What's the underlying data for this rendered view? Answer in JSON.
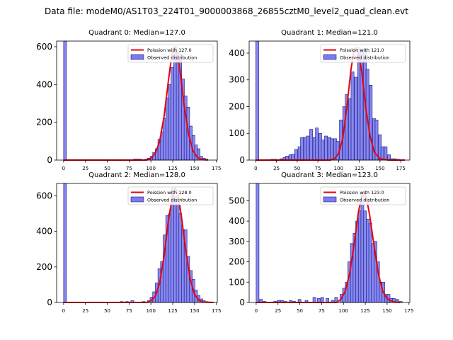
{
  "figure_title": "Data file: modeM0/AS1T03_224T01_9000003868_26855cztM0_level2_quad_clean.evt",
  "colors": {
    "hist_fill": "#7b7bf0",
    "hist_edge": "#1a1a80",
    "poisson": "#e8000b",
    "axes": "#000000"
  },
  "legend_labels": {
    "poisson": "Poission with {m}",
    "observed": "Observed distribution"
  },
  "chart_data": [
    {
      "type": "bar",
      "title": "Quadrant 0: Median=127.0",
      "legend_poisson": "Poission with 127.0",
      "legend_observed": "Observed distribution",
      "median": 127,
      "xlim": [
        -8,
        176
      ],
      "ylim": [
        0,
        630
      ],
      "xticks": [
        0,
        25,
        50,
        75,
        100,
        125,
        150,
        175
      ],
      "yticks": [
        0,
        200,
        400,
        600
      ],
      "bin_width": 3.3,
      "bins": [
        [
          0,
          640
        ],
        [
          80,
          5
        ],
        [
          83,
          5
        ],
        [
          86,
          5
        ],
        [
          93,
          5
        ],
        [
          96,
          10
        ],
        [
          99,
          20
        ],
        [
          102,
          40
        ],
        [
          105,
          60
        ],
        [
          108,
          110
        ],
        [
          111,
          150
        ],
        [
          114,
          220
        ],
        [
          117,
          330
        ],
        [
          120,
          400
        ],
        [
          123,
          490
        ],
        [
          126,
          600
        ],
        [
          129,
          570
        ],
        [
          132,
          560
        ],
        [
          135,
          430
        ],
        [
          138,
          340
        ],
        [
          141,
          280
        ],
        [
          144,
          180
        ],
        [
          147,
          130
        ],
        [
          150,
          80
        ],
        [
          153,
          60
        ],
        [
          156,
          20
        ],
        [
          159,
          10
        ],
        [
          162,
          5
        ]
      ],
      "poisson": [
        [
          0,
          0
        ],
        [
          95,
          0
        ],
        [
          100,
          10
        ],
        [
          105,
          35
        ],
        [
          110,
          100
        ],
        [
          115,
          230
        ],
        [
          120,
          420
        ],
        [
          124,
          560
        ],
        [
          127,
          600
        ],
        [
          130,
          570
        ],
        [
          134,
          450
        ],
        [
          138,
          290
        ],
        [
          143,
          140
        ],
        [
          148,
          50
        ],
        [
          153,
          15
        ],
        [
          158,
          3
        ],
        [
          165,
          0
        ]
      ]
    },
    {
      "type": "bar",
      "title": "Quadrant 1: Median=121.0",
      "legend_poisson": "Poission with 121.0",
      "legend_observed": "Observed distribution",
      "median": 121,
      "xlim": [
        -8,
        186
      ],
      "ylim": [
        0,
        445
      ],
      "xticks": [
        0,
        25,
        50,
        75,
        100,
        125,
        150,
        175
      ],
      "yticks": [
        0,
        100,
        200,
        300,
        400
      ],
      "bin_width": 3.6,
      "bins": [
        [
          0,
          460
        ],
        [
          18,
          3
        ],
        [
          22,
          3
        ],
        [
          29,
          5
        ],
        [
          33,
          10
        ],
        [
          36,
          15
        ],
        [
          40,
          20
        ],
        [
          43,
          22
        ],
        [
          47,
          40
        ],
        [
          51,
          50
        ],
        [
          54,
          85
        ],
        [
          58,
          85
        ],
        [
          61,
          90
        ],
        [
          65,
          115
        ],
        [
          69,
          85
        ],
        [
          72,
          120
        ],
        [
          76,
          100
        ],
        [
          79,
          75
        ],
        [
          83,
          90
        ],
        [
          87,
          85
        ],
        [
          90,
          80
        ],
        [
          94,
          80
        ],
        [
          97,
          70
        ],
        [
          101,
          150
        ],
        [
          105,
          200
        ],
        [
          108,
          245
        ],
        [
          112,
          230
        ],
        [
          115,
          330
        ],
        [
          119,
          310
        ],
        [
          123,
          420
        ],
        [
          126,
          410
        ],
        [
          130,
          415
        ],
        [
          133,
          340
        ],
        [
          137,
          280
        ],
        [
          141,
          155
        ],
        [
          144,
          150
        ],
        [
          148,
          95
        ],
        [
          151,
          50
        ],
        [
          155,
          50
        ],
        [
          159,
          20
        ],
        [
          162,
          5
        ],
        [
          166,
          5
        ],
        [
          170,
          3
        ]
      ],
      "poisson": [
        [
          0,
          0
        ],
        [
          90,
          0
        ],
        [
          95,
          5
        ],
        [
          100,
          25
        ],
        [
          105,
          80
        ],
        [
          110,
          200
        ],
        [
          115,
          340
        ],
        [
          119,
          415
        ],
        [
          121,
          420
        ],
        [
          124,
          400
        ],
        [
          128,
          330
        ],
        [
          133,
          190
        ],
        [
          138,
          90
        ],
        [
          143,
          30
        ],
        [
          150,
          5
        ],
        [
          160,
          0
        ],
        [
          180,
          0
        ]
      ]
    },
    {
      "type": "bar",
      "title": "Quadrant 2: Median=128.0",
      "legend_poisson": "Poission with 128.0",
      "legend_observed": "Observed distribution",
      "median": 128,
      "xlim": [
        -8,
        176
      ],
      "ylim": [
        0,
        670
      ],
      "xticks": [
        0,
        25,
        50,
        75,
        100,
        125,
        150,
        175
      ],
      "yticks": [
        0,
        200,
        400,
        600
      ],
      "bin_width": 3.3,
      "bins": [
        [
          0,
          680
        ],
        [
          65,
          5
        ],
        [
          71,
          5
        ],
        [
          77,
          10
        ],
        [
          90,
          5
        ],
        [
          96,
          10
        ],
        [
          99,
          30
        ],
        [
          102,
          60
        ],
        [
          105,
          110
        ],
        [
          108,
          190
        ],
        [
          111,
          230
        ],
        [
          114,
          380
        ],
        [
          117,
          490
        ],
        [
          120,
          500
        ],
        [
          123,
          640
        ],
        [
          126,
          600
        ],
        [
          129,
          570
        ],
        [
          132,
          500
        ],
        [
          135,
          410
        ],
        [
          138,
          410
        ],
        [
          141,
          260
        ],
        [
          144,
          180
        ],
        [
          147,
          130
        ],
        [
          150,
          70
        ],
        [
          153,
          40
        ],
        [
          156,
          20
        ],
        [
          159,
          10
        ],
        [
          162,
          5
        ]
      ],
      "poisson": [
        [
          0,
          0
        ],
        [
          95,
          0
        ],
        [
          100,
          10
        ],
        [
          105,
          35
        ],
        [
          110,
          110
        ],
        [
          115,
          260
        ],
        [
          120,
          460
        ],
        [
          125,
          610
        ],
        [
          128,
          645
        ],
        [
          131,
          610
        ],
        [
          135,
          480
        ],
        [
          140,
          290
        ],
        [
          145,
          130
        ],
        [
          150,
          45
        ],
        [
          155,
          12
        ],
        [
          160,
          2
        ],
        [
          172,
          0
        ]
      ]
    },
    {
      "type": "bar",
      "title": "Quadrant 3: Median=123.0",
      "legend_poisson": "Poission with 123.0",
      "legend_observed": "Observed distribution",
      "median": 123,
      "xlim": [
        -8,
        176
      ],
      "ylim": [
        0,
        585
      ],
      "xticks": [
        0,
        25,
        50,
        75,
        100,
        125,
        150,
        175
      ],
      "yticks": [
        0,
        100,
        200,
        300,
        400,
        500
      ],
      "bin_width": 3.3,
      "bins": [
        [
          0,
          600
        ],
        [
          4,
          15
        ],
        [
          8,
          5
        ],
        [
          20,
          5
        ],
        [
          24,
          10
        ],
        [
          28,
          10
        ],
        [
          32,
          5
        ],
        [
          38,
          10
        ],
        [
          42,
          5
        ],
        [
          48,
          15
        ],
        [
          56,
          10
        ],
        [
          65,
          25
        ],
        [
          70,
          20
        ],
        [
          74,
          25
        ],
        [
          80,
          20
        ],
        [
          86,
          10
        ],
        [
          90,
          25
        ],
        [
          96,
          40
        ],
        [
          99,
          70
        ],
        [
          102,
          100
        ],
        [
          105,
          200
        ],
        [
          108,
          290
        ],
        [
          111,
          340
        ],
        [
          114,
          400
        ],
        [
          117,
          450
        ],
        [
          120,
          530
        ],
        [
          123,
          450
        ],
        [
          126,
          410
        ],
        [
          129,
          390
        ],
        [
          132,
          290
        ],
        [
          135,
          300
        ],
        [
          138,
          200
        ],
        [
          141,
          100
        ],
        [
          144,
          100
        ],
        [
          147,
          40
        ],
        [
          150,
          40
        ],
        [
          153,
          20
        ],
        [
          156,
          20
        ],
        [
          160,
          15
        ],
        [
          164,
          5
        ]
      ],
      "poisson": [
        [
          0,
          0
        ],
        [
          92,
          0
        ],
        [
          97,
          15
        ],
        [
          102,
          55
        ],
        [
          107,
          140
        ],
        [
          112,
          280
        ],
        [
          117,
          440
        ],
        [
          121,
          530
        ],
        [
          123,
          545
        ],
        [
          126,
          520
        ],
        [
          130,
          430
        ],
        [
          135,
          280
        ],
        [
          140,
          140
        ],
        [
          145,
          55
        ],
        [
          150,
          18
        ],
        [
          157,
          3
        ],
        [
          165,
          0
        ]
      ]
    }
  ]
}
